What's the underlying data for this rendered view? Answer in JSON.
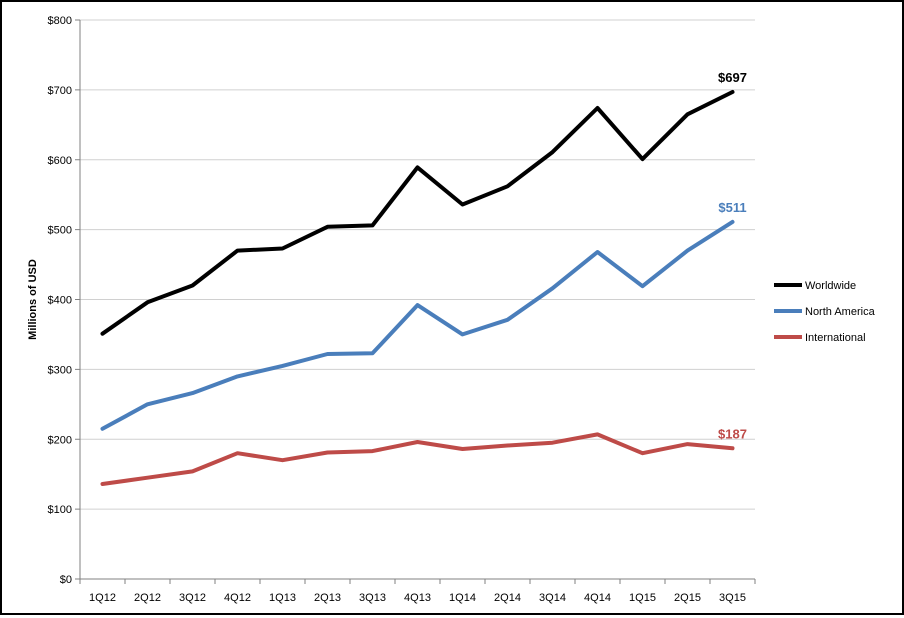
{
  "chart_data": {
    "type": "line",
    "title": "",
    "xlabel": "",
    "ylabel": "Millions of USD",
    "ylim": [
      0,
      800
    ],
    "yticks": [
      0,
      100,
      200,
      300,
      400,
      500,
      600,
      700,
      800
    ],
    "ytick_labels": [
      "$0",
      "$100",
      "$200",
      "$300",
      "$400",
      "$500",
      "$600",
      "$700",
      "$800"
    ],
    "categories": [
      "1Q12",
      "2Q12",
      "3Q12",
      "4Q12",
      "1Q13",
      "2Q13",
      "3Q13",
      "4Q13",
      "1Q14",
      "2Q14",
      "3Q14",
      "4Q14",
      "1Q15",
      "2Q15",
      "3Q15"
    ],
    "grid": "horizontal",
    "legend_position": "right",
    "series": [
      {
        "name": "Worldwide",
        "color": "#000000",
        "values": [
          351,
          396,
          420,
          470,
          473,
          504,
          506,
          589,
          536,
          562,
          611,
          674,
          601,
          665,
          697
        ],
        "end_label": "$697"
      },
      {
        "name": "North America",
        "color": "#4a7ebb",
        "values": [
          215,
          250,
          266,
          290,
          305,
          322,
          323,
          392,
          350,
          371,
          416,
          468,
          419,
          470,
          511
        ],
        "end_label": "$511"
      },
      {
        "name": "International",
        "color": "#be4b48",
        "values": [
          136,
          145,
          154,
          180,
          170,
          181,
          183,
          196,
          186,
          191,
          195,
          207,
          180,
          193,
          187
        ],
        "end_label": "$187"
      }
    ]
  }
}
